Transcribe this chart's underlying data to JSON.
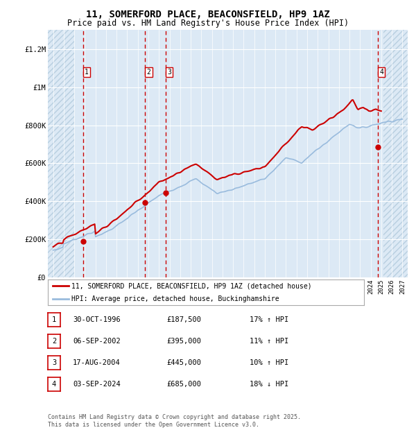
{
  "title": "11, SOMERFORD PLACE, BEACONSFIELD, HP9 1AZ",
  "subtitle": "Price paid vs. HM Land Registry's House Price Index (HPI)",
  "bg_color": "#dce9f5",
  "hatch_color": "#b8cfe0",
  "grid_color": "#ffffff",
  "red_line_color": "#cc0000",
  "blue_line_color": "#99bbdd",
  "sale_marker_color": "#cc0000",
  "ylim": [
    0,
    1300000
  ],
  "yticks": [
    0,
    200000,
    400000,
    600000,
    800000,
    1000000,
    1200000
  ],
  "ytick_labels": [
    "£0",
    "£200K",
    "£400K",
    "£600K",
    "£800K",
    "£1M",
    "£1.2M"
  ],
  "xstart": 1993.5,
  "xend": 2027.5,
  "sale_dates": [
    1996.83,
    2002.68,
    2004.63,
    2024.67
  ],
  "sale_prices": [
    187500,
    395000,
    445000,
    685000
  ],
  "sale_labels": [
    "1",
    "2",
    "3",
    "4"
  ],
  "legend_entries": [
    "11, SOMERFORD PLACE, BEACONSFIELD, HP9 1AZ (detached house)",
    "HPI: Average price, detached house, Buckinghamshire"
  ],
  "table_rows": [
    [
      "1",
      "30-OCT-1996",
      "£187,500",
      "17% ↑ HPI"
    ],
    [
      "2",
      "06-SEP-2002",
      "£395,000",
      "11% ↑ HPI"
    ],
    [
      "3",
      "17-AUG-2004",
      "£445,000",
      "10% ↑ HPI"
    ],
    [
      "4",
      "03-SEP-2024",
      "£685,000",
      "18% ↓ HPI"
    ]
  ],
  "footer": "Contains HM Land Registry data © Crown copyright and database right 2025.\nThis data is licensed under the Open Government Licence v3.0."
}
